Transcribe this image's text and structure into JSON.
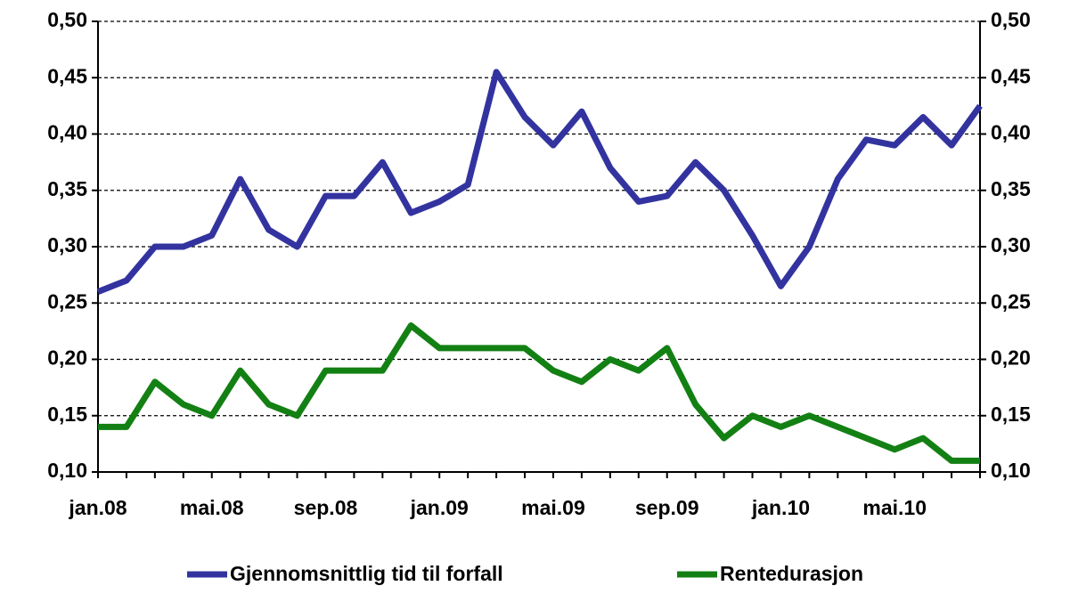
{
  "chart_data": {
    "type": "line",
    "categories": [
      "jan.08",
      null,
      null,
      null,
      "mai.08",
      null,
      null,
      null,
      "sep.08",
      null,
      null,
      null,
      "jan.09",
      null,
      null,
      null,
      "mai.09",
      null,
      null,
      null,
      "sep.09",
      null,
      null,
      null,
      "jan.10",
      null,
      null,
      null,
      "mai.10",
      null,
      null,
      null
    ],
    "series": [
      {
        "name": "Gjennomsnittlig tid til forfall",
        "color": "#3333a0",
        "values": [
          0.26,
          0.27,
          0.3,
          0.3,
          0.31,
          0.36,
          0.315,
          0.3,
          0.345,
          0.345,
          0.375,
          0.33,
          0.34,
          0.355,
          0.455,
          0.415,
          0.39,
          0.42,
          0.37,
          0.34,
          0.345,
          0.375,
          0.35,
          0.31,
          0.265,
          0.3,
          0.36,
          0.395,
          0.39,
          0.415,
          0.39,
          0.425
        ]
      },
      {
        "name": "Rentedurasjon",
        "color": "#138013",
        "values": [
          0.14,
          0.14,
          0.18,
          0.16,
          0.15,
          0.19,
          0.16,
          0.15,
          0.19,
          0.19,
          0.19,
          0.23,
          0.21,
          0.21,
          0.21,
          0.21,
          0.19,
          0.18,
          0.2,
          0.19,
          0.21,
          0.16,
          0.13,
          0.15,
          0.14,
          0.15,
          0.14,
          0.13,
          0.12,
          0.13,
          0.11,
          0.11
        ]
      }
    ],
    "ylim": [
      0.1,
      0.5
    ],
    "yticks": [
      {
        "value": 0.1,
        "label": "0,10"
      },
      {
        "value": 0.15,
        "label": "0,15"
      },
      {
        "value": 0.2,
        "label": "0,20"
      },
      {
        "value": 0.25,
        "label": "0,25"
      },
      {
        "value": 0.3,
        "label": "0,30"
      },
      {
        "value": 0.35,
        "label": "0,35"
      },
      {
        "value": 0.4,
        "label": "0,40"
      },
      {
        "value": 0.45,
        "label": "0,45"
      },
      {
        "value": 0.5,
        "label": "0,50"
      }
    ],
    "y2lim": [
      0.1,
      0.5
    ],
    "y2ticks": [
      {
        "value": 0.1,
        "label": "0,10"
      },
      {
        "value": 0.15,
        "label": "0,15"
      },
      {
        "value": 0.2,
        "label": "0,20"
      },
      {
        "value": 0.25,
        "label": "0,25"
      },
      {
        "value": 0.3,
        "label": "0,30"
      },
      {
        "value": 0.35,
        "label": "0,35"
      },
      {
        "value": 0.4,
        "label": "0,40"
      },
      {
        "value": 0.45,
        "label": "0,45"
      },
      {
        "value": 0.5,
        "label": "0,50"
      }
    ],
    "grid": true,
    "legend": "bottom"
  }
}
